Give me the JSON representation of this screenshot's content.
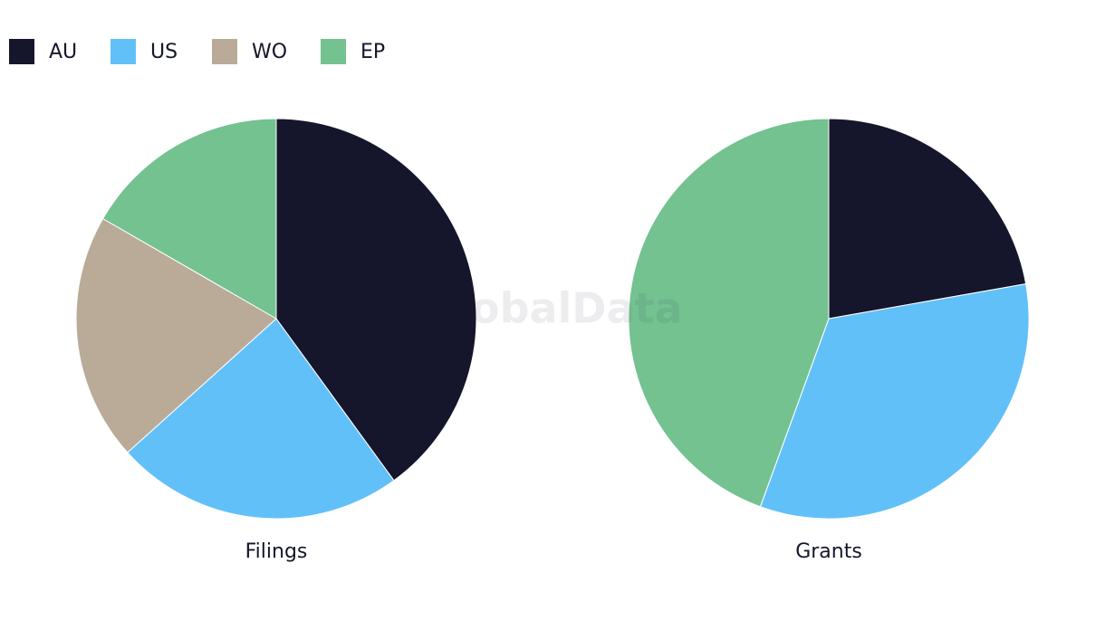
{
  "watermark": "GlobalData",
  "chart_data": [
    {
      "type": "pie",
      "title": "Filings",
      "categories": [
        "AU",
        "US",
        "WO",
        "EP"
      ],
      "values": [
        12,
        7,
        6,
        5
      ],
      "colors": [
        "#15162b",
        "#62c0f8",
        "#b9ab98",
        "#73c290"
      ],
      "legend": "top-left"
    },
    {
      "type": "pie",
      "title": "Grants",
      "categories": [
        "AU",
        "US",
        "WO",
        "EP"
      ],
      "values": [
        2,
        3,
        0,
        4
      ],
      "colors": [
        "#15162b",
        "#62c0f8",
        "#b9ab98",
        "#73c290"
      ]
    }
  ]
}
